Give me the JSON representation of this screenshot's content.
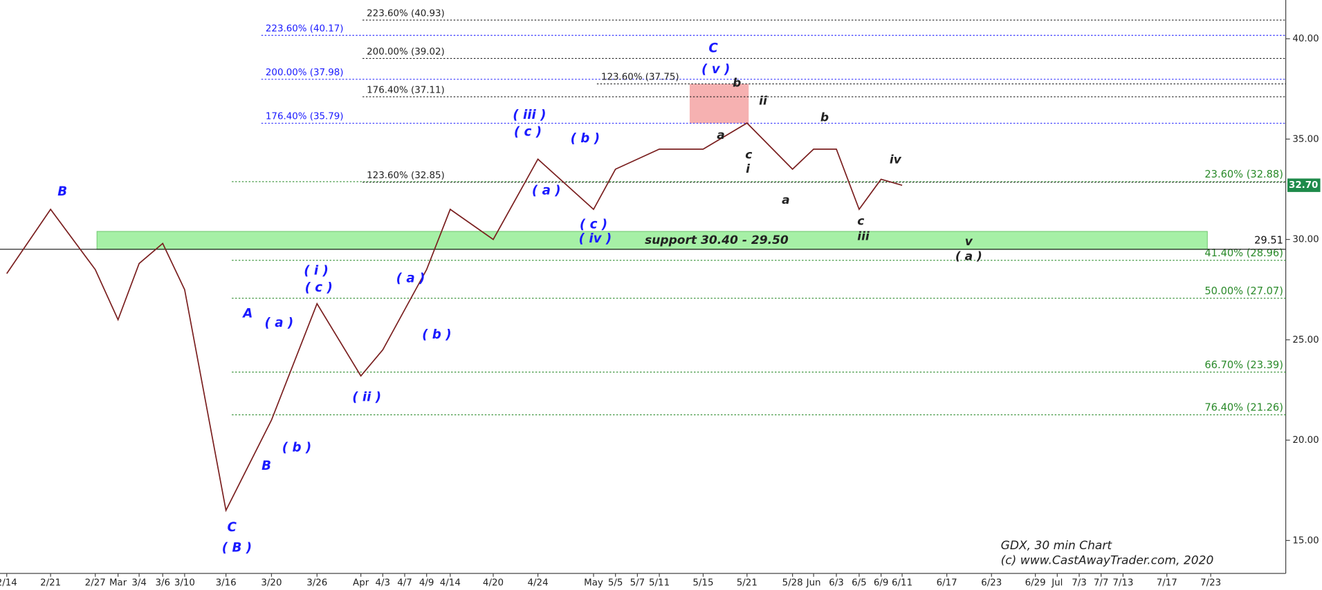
{
  "chart_data": {
    "type": "line",
    "categories": [
      "2/14",
      "2/21",
      "2/27",
      "Mar",
      "3/4",
      "3/6",
      "3/10",
      "3/16",
      "3/20",
      "3/26",
      "Apr",
      "4/3",
      "4/7",
      "4/9",
      "4/14",
      "4/20",
      "4/24",
      "May",
      "5/5",
      "5/7",
      "5/11",
      "5/15",
      "5/21",
      "5/28",
      "Jun",
      "6/3",
      "6/5",
      "6/9",
      "6/11",
      "6/17",
      "6/23",
      "6/29",
      "Jul",
      "7/3",
      "7/7",
      "7/13",
      "7/17",
      "7/23"
    ],
    "values": [
      28.3,
      31.5,
      28.5,
      26.0,
      28.8,
      29.8,
      27.5,
      16.5,
      21.0,
      26.8,
      23.2,
      24.5,
      26.5,
      28.5,
      31.5,
      30.0,
      34.0,
      31.5,
      33.5,
      34.0,
      34.5,
      34.5,
      35.8,
      33.5,
      34.5,
      34.5,
      31.5,
      33.0,
      32.7,
      null,
      null,
      null,
      null,
      null,
      null,
      null,
      null,
      null
    ],
    "color": "#7a1f1f",
    "ylim": [
      13.36,
      41.93
    ],
    "yticks": [
      {
        "value": 15,
        "label": "15.00"
      },
      {
        "value": 20,
        "label": "20.00"
      },
      {
        "value": 25,
        "label": "25.00"
      },
      {
        "value": 30,
        "label": "30.00"
      },
      {
        "value": 35,
        "label": "35.00"
      },
      {
        "value": 40,
        "label": "40.00"
      }
    ],
    "fib_levels": [
      {
        "label": "223.60% (40.93)",
        "value": 40.93,
        "color": "#222222"
      },
      {
        "label": "223.60% (40.17)",
        "value": 40.17,
        "color": "#1a1aff"
      },
      {
        "label": "200.00% (39.02)",
        "value": 39.02,
        "color": "#222222"
      },
      {
        "label": "200.00% (37.98)",
        "value": 37.98,
        "color": "#1a1aff"
      },
      {
        "label": "123.60% (37.75)",
        "value": 37.75,
        "color": "#222222"
      },
      {
        "label": "176.40% (37.11)",
        "value": 37.11,
        "color": "#222222"
      },
      {
        "label": "176.40% (35.79)",
        "value": 35.79,
        "color": "#1a1aff"
      },
      {
        "label": "123.60% (32.85)",
        "value": 32.85,
        "color": "#222222"
      },
      {
        "label": "23.60% (32.88)",
        "value": 32.88,
        "color": "#2a8a2a"
      },
      {
        "label": "41.40% (28.96)",
        "value": 28.96,
        "color": "#2a8a2a"
      },
      {
        "label": "50.00% (27.07)",
        "value": 27.07,
        "color": "#2a8a2a"
      },
      {
        "label": "66.70% (23.39)",
        "value": 23.39,
        "color": "#2a8a2a"
      },
      {
        "label": "76.40% (21.26)",
        "value": 21.26,
        "color": "#2a8a2a"
      }
    ],
    "support": {
      "label": "support 30.40 - 29.50",
      "range": [
        30.4,
        29.5
      ],
      "color": "#a6f0a6"
    },
    "reference_line": {
      "value": 29.51
    },
    "last_price": {
      "value": 32.7,
      "label": "32.70",
      "color": "#1e8a4a"
    },
    "highlight": {
      "range": [
        37.75,
        35.79
      ],
      "color": "#f4a3a3"
    },
    "wave_labels": [
      {
        "text": "B",
        "color": "#1a1aff"
      },
      {
        "text": "A",
        "color": "#1a1aff"
      },
      {
        "text": "B",
        "color": "#1a1aff"
      },
      {
        "text": "C",
        "color": "#1a1aff"
      },
      {
        "text": "( B )",
        "color": "#1a1aff"
      },
      {
        "text": "( a )",
        "color": "#1a1aff"
      },
      {
        "text": "( b )",
        "color": "#1a1aff"
      },
      {
        "text": "( i )",
        "color": "#1a1aff"
      },
      {
        "text": "( c )",
        "color": "#1a1aff"
      },
      {
        "text": "( ii )",
        "color": "#1a1aff"
      },
      {
        "text": "( a )",
        "color": "#1a1aff"
      },
      {
        "text": "( b )",
        "color": "#1a1aff"
      },
      {
        "text": "( iii )",
        "color": "#1a1aff"
      },
      {
        "text": "( c )",
        "color": "#1a1aff"
      },
      {
        "text": "( a )",
        "color": "#1a1aff"
      },
      {
        "text": "( b )",
        "color": "#1a1aff"
      },
      {
        "text": "( c )",
        "color": "#1a1aff"
      },
      {
        "text": "( iv )",
        "color": "#1a1aff"
      },
      {
        "text": "C",
        "color": "#1a1aff"
      },
      {
        "text": "( v )",
        "color": "#1a1aff"
      },
      {
        "text": "a",
        "color": "#222222"
      },
      {
        "text": "b",
        "color": "#222222"
      },
      {
        "text": "ii",
        "color": "#222222"
      },
      {
        "text": "c",
        "color": "#222222"
      },
      {
        "text": "i",
        "color": "#222222"
      },
      {
        "text": "a",
        "color": "#222222"
      },
      {
        "text": "b",
        "color": "#222222"
      },
      {
        "text": "c",
        "color": "#222222"
      },
      {
        "text": "iii",
        "color": "#222222"
      },
      {
        "text": "iv",
        "color": "#222222"
      },
      {
        "text": "v",
        "color": "#222222"
      },
      {
        "text": "( a )",
        "color": "#222222"
      }
    ],
    "footer": [
      "GDX, 30 min Chart",
      "(c) www.CastAwayTrader.com, 2020"
    ]
  }
}
